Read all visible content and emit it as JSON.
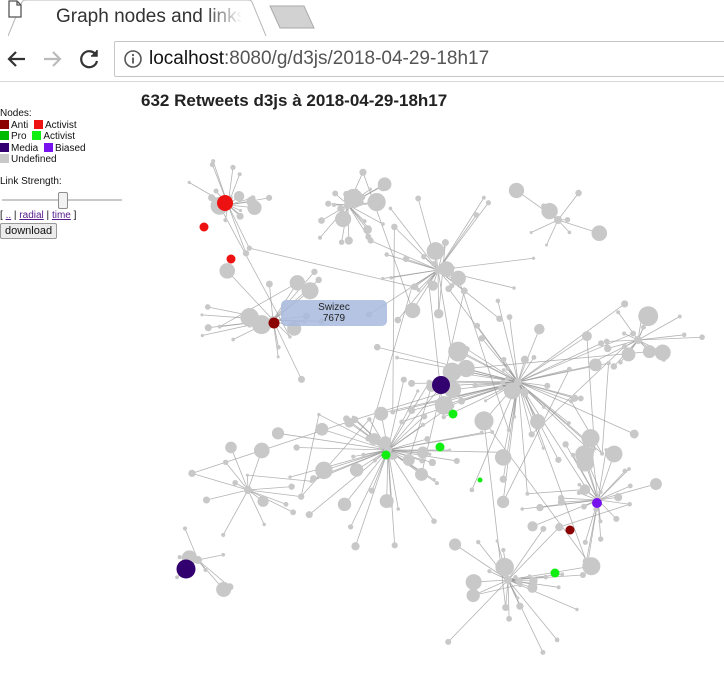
{
  "browser": {
    "tab_title": "Graph nodes and links",
    "url_host": "localhost",
    "url_path": ":8080/g/d3js/2018-04-29-18h17"
  },
  "page": {
    "title": "632 Retweets d3js à 2018-04-29-18h17",
    "legend": {
      "heading": "Nodes:",
      "anti": "Anti",
      "activist": "Activist",
      "pro": "Pro",
      "activist2": "Activist",
      "media": "Media",
      "biased": "Biased",
      "undefined": "Undefined"
    },
    "link_strength_label": "Link Strength:",
    "link_strength_value": 0.5,
    "links": {
      "open": "[",
      "default": "..",
      "sep1": "|",
      "radial": "radial",
      "sep2": "|",
      "time": "time",
      "close": "]"
    },
    "download_label": "download",
    "tooltip": {
      "name": "Swizec",
      "value": "7679"
    }
  },
  "colors": {
    "anti": "#8b0000",
    "anti_activist": "#ee1111",
    "pro": "#00bb00",
    "pro_activist": "#11ee11",
    "media": "#33006f",
    "biased": "#7711ee",
    "undefined": "#c8c8c8",
    "link": "#999999"
  }
}
